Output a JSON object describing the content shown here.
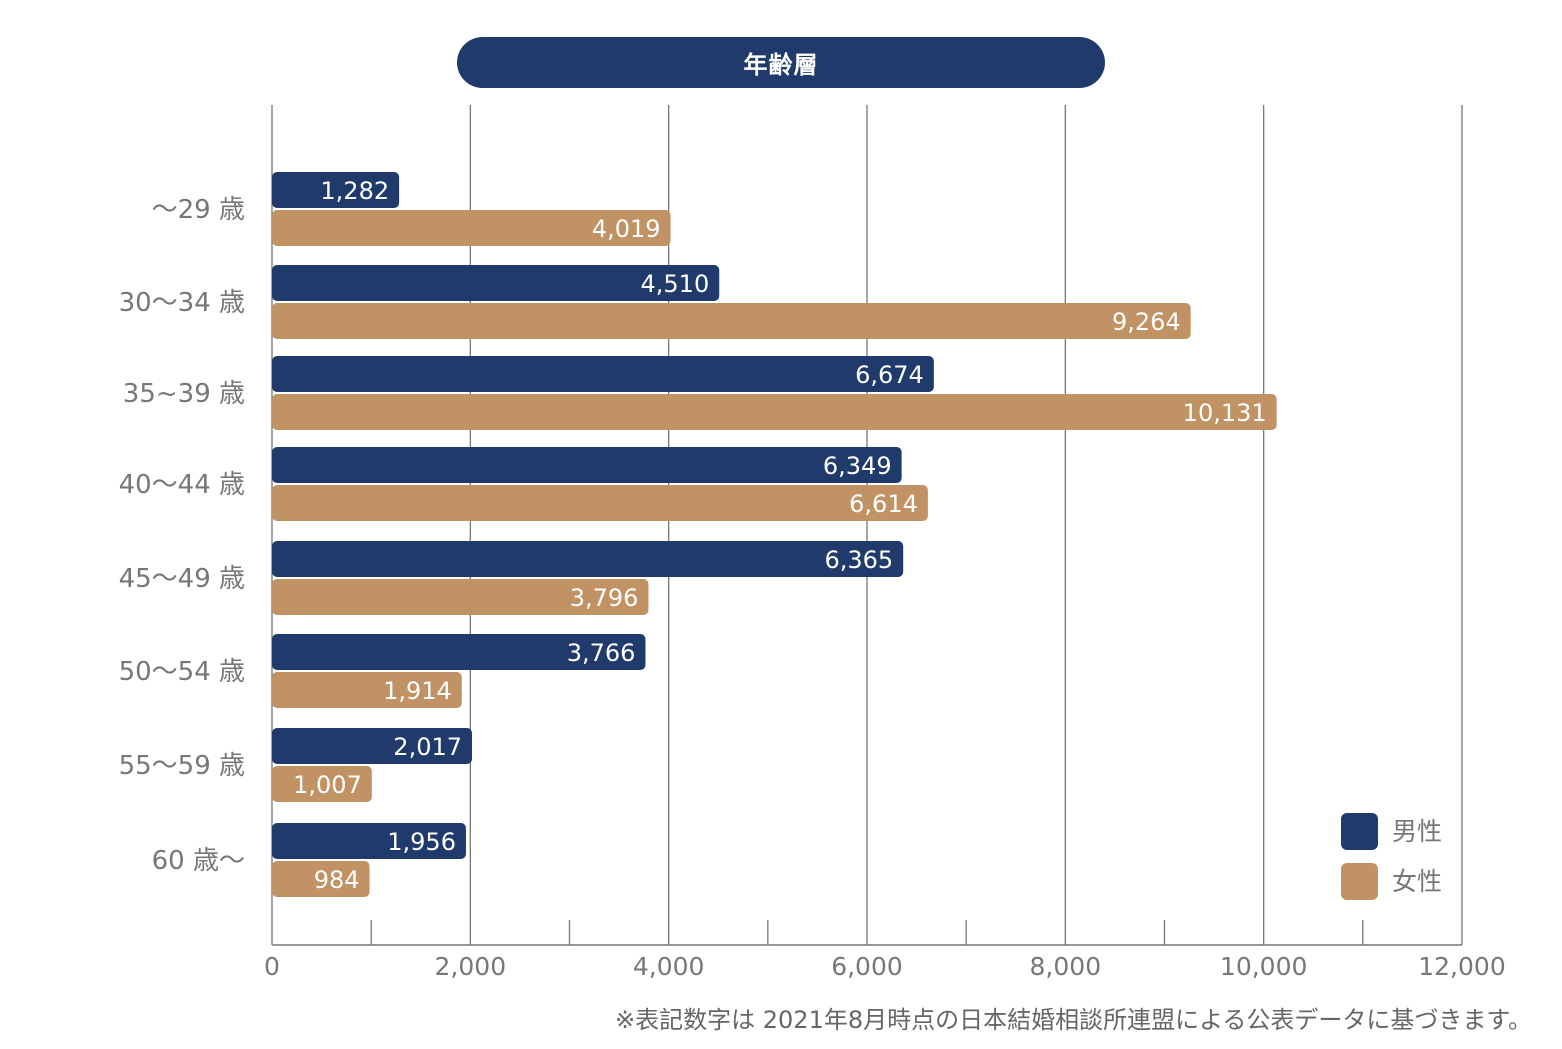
{
  "chart_data": {
    "type": "bar",
    "orientation": "horizontal",
    "title": "年齢層",
    "categories": [
      "～29 歳",
      "30～34 歳",
      "35~39 歳",
      "40～44 歳",
      "45～49 歳",
      "50～54 歳",
      "55～59 歳",
      "60 歳～"
    ],
    "series": [
      {
        "name": "男性",
        "color": "#1f3a6b",
        "values": [
          1282,
          4510,
          6674,
          6349,
          6365,
          3766,
          2017,
          1956
        ]
      },
      {
        "name": "女性",
        "color": "#c19263",
        "values": [
          4019,
          9264,
          10131,
          6614,
          3796,
          1914,
          1007,
          984
        ]
      }
    ],
    "data_labels": [
      [
        "1,282",
        "4,510",
        "6,674",
        "6,349",
        "6,365",
        "3,766",
        "2,017",
        "1,956"
      ],
      [
        "4,019",
        "9,264",
        "10,131",
        "6,614",
        "3,796",
        "1,914",
        "1,007",
        "984"
      ]
    ],
    "xlim": [
      0,
      12000
    ],
    "x_ticks": [
      0,
      2000,
      4000,
      6000,
      8000,
      10000,
      12000
    ],
    "x_tick_labels": [
      "0",
      "2,000",
      "4,000",
      "6,000",
      "8,000",
      "10,000",
      "12,000"
    ],
    "grid": true,
    "legend_position": "bottom-right",
    "footnote": "※表記数字は 2021年8月時点の日本結婚相談所連盟による公表データに基づきます。"
  }
}
